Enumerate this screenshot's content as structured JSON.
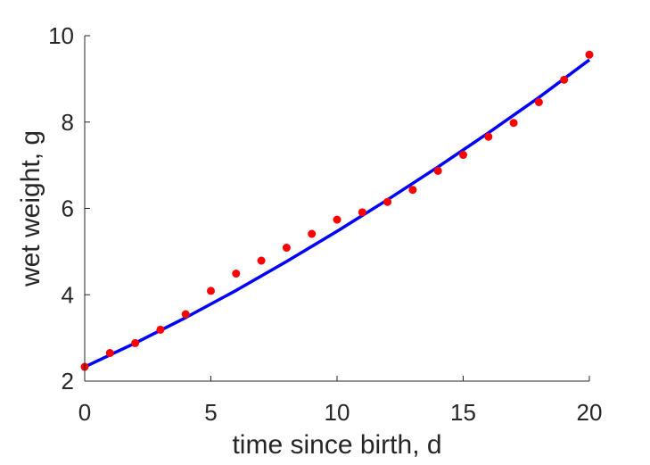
{
  "chart_data": {
    "type": "scatter",
    "title": "",
    "xlabel": "time since birth, d",
    "ylabel": "wet weight, g",
    "xlim": [
      0,
      20
    ],
    "ylim": [
      2,
      10
    ],
    "x_ticks": [
      0,
      5,
      10,
      15,
      20
    ],
    "y_ticks": [
      2,
      4,
      6,
      8,
      10
    ],
    "x_tick_labels": [
      "0",
      "5",
      "10",
      "15",
      "20"
    ],
    "y_tick_labels": [
      "2",
      "4",
      "6",
      "8",
      "10"
    ],
    "grid": false,
    "legend": "none",
    "series": [
      {
        "kind": "scatter",
        "color": "#ff0000",
        "points": [
          [
            0,
            2.33
          ],
          [
            1,
            2.65
          ],
          [
            2,
            2.88
          ],
          [
            3,
            3.19
          ],
          [
            4,
            3.55
          ],
          [
            5,
            4.09
          ],
          [
            6,
            4.49
          ],
          [
            7,
            4.79
          ],
          [
            8,
            5.09
          ],
          [
            9,
            5.41
          ],
          [
            10,
            5.74
          ],
          [
            11,
            5.91
          ],
          [
            12,
            6.15
          ],
          [
            13,
            6.43
          ],
          [
            14,
            6.87
          ],
          [
            15,
            7.24
          ],
          [
            16,
            7.66
          ],
          [
            17,
            7.98
          ],
          [
            18,
            8.46
          ],
          [
            19,
            8.98
          ],
          [
            20,
            9.56
          ]
        ]
      },
      {
        "kind": "line",
        "color": "#0000ff",
        "x": [
          0,
          2,
          4,
          6,
          8,
          10,
          12,
          14,
          16,
          18,
          20
        ],
        "values": [
          2.33,
          2.88,
          3.47,
          4.1,
          4.77,
          5.47,
          6.2,
          6.96,
          7.75,
          8.57,
          9.44
        ]
      }
    ]
  }
}
